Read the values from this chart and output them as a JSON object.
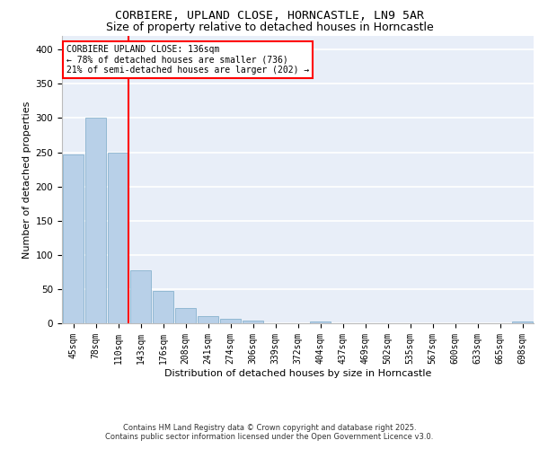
{
  "title": "CORBIERE, UPLAND CLOSE, HORNCASTLE, LN9 5AR",
  "subtitle": "Size of property relative to detached houses in Horncastle",
  "xlabel": "Distribution of detached houses by size in Horncastle",
  "ylabel": "Number of detached properties",
  "categories": [
    "45sqm",
    "78sqm",
    "110sqm",
    "143sqm",
    "176sqm",
    "208sqm",
    "241sqm",
    "274sqm",
    "306sqm",
    "339sqm",
    "372sqm",
    "404sqm",
    "437sqm",
    "469sqm",
    "502sqm",
    "535sqm",
    "567sqm",
    "600sqm",
    "633sqm",
    "665sqm",
    "698sqm"
  ],
  "values": [
    247,
    300,
    250,
    77,
    47,
    22,
    10,
    7,
    4,
    0,
    0,
    3,
    0,
    0,
    0,
    0,
    0,
    0,
    0,
    0,
    3
  ],
  "bar_color": "#b8d0e8",
  "bar_edge_color": "#7aaac8",
  "vline_x_index": 2,
  "vline_color": "red",
  "annotation_text": "CORBIERE UPLAND CLOSE: 136sqm\n← 78% of detached houses are smaller (736)\n21% of semi-detached houses are larger (202) →",
  "annotation_box_color": "white",
  "annotation_box_edge_color": "red",
  "ylim": [
    0,
    420
  ],
  "yticks": [
    0,
    50,
    100,
    150,
    200,
    250,
    300,
    350,
    400
  ],
  "bg_color": "#e8eef8",
  "grid_color": "white",
  "footer_line1": "Contains HM Land Registry data © Crown copyright and database right 2025.",
  "footer_line2": "Contains public sector information licensed under the Open Government Licence v3.0.",
  "title_fontsize": 9.5,
  "subtitle_fontsize": 9,
  "tick_fontsize": 7,
  "ylabel_fontsize": 8,
  "xlabel_fontsize": 8,
  "annotation_fontsize": 7
}
